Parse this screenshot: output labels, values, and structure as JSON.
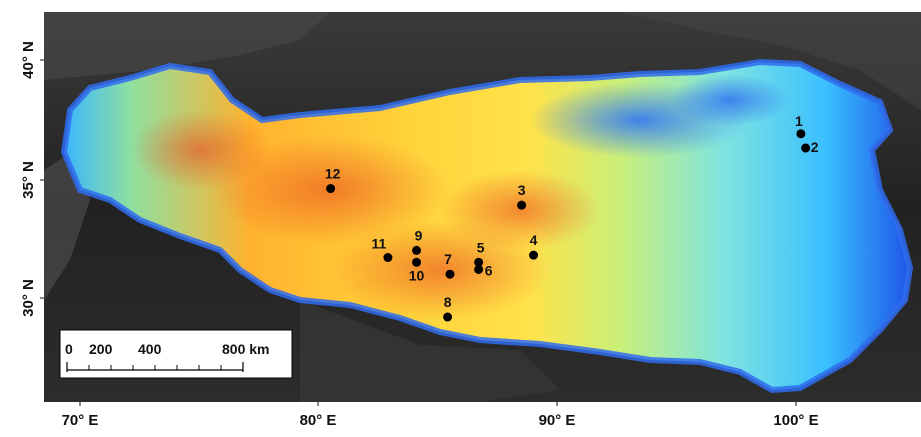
{
  "map": {
    "lon_ticks": [
      "70° E",
      "80° E",
      "90° E",
      "100° E"
    ],
    "lat_ticks": [
      "40° N",
      "35° N",
      "30° N"
    ],
    "sites": [
      {
        "id": "1",
        "lon": 100.2,
        "lat": 36.9
      },
      {
        "id": "2",
        "lon": 100.4,
        "lat": 36.3
      },
      {
        "id": "3",
        "lon": 88.5,
        "lat": 33.9
      },
      {
        "id": "4",
        "lon": 89.0,
        "lat": 31.8
      },
      {
        "id": "5",
        "lon": 86.7,
        "lat": 31.5
      },
      {
        "id": "6",
        "lon": 86.7,
        "lat": 31.2
      },
      {
        "id": "7",
        "lon": 85.5,
        "lat": 31.0
      },
      {
        "id": "8",
        "lon": 85.4,
        "lat": 29.2
      },
      {
        "id": "9",
        "lon": 84.1,
        "lat": 32.0
      },
      {
        "id": "10",
        "lon": 84.1,
        "lat": 31.5
      },
      {
        "id": "11",
        "lon": 82.9,
        "lat": 31.7
      },
      {
        "id": "12",
        "lon": 80.5,
        "lat": 34.6
      }
    ],
    "scalebar": {
      "labels": [
        "0",
        "200",
        "400",
        "800 km"
      ]
    },
    "colors": {
      "background_dark": "#262626",
      "elevation_high": "#e8281a",
      "elevation_mid": "#ffe03a",
      "elevation_low": "#32c8ff",
      "elevation_lowest": "#1e4fe0",
      "site_marker": "#000000"
    }
  }
}
